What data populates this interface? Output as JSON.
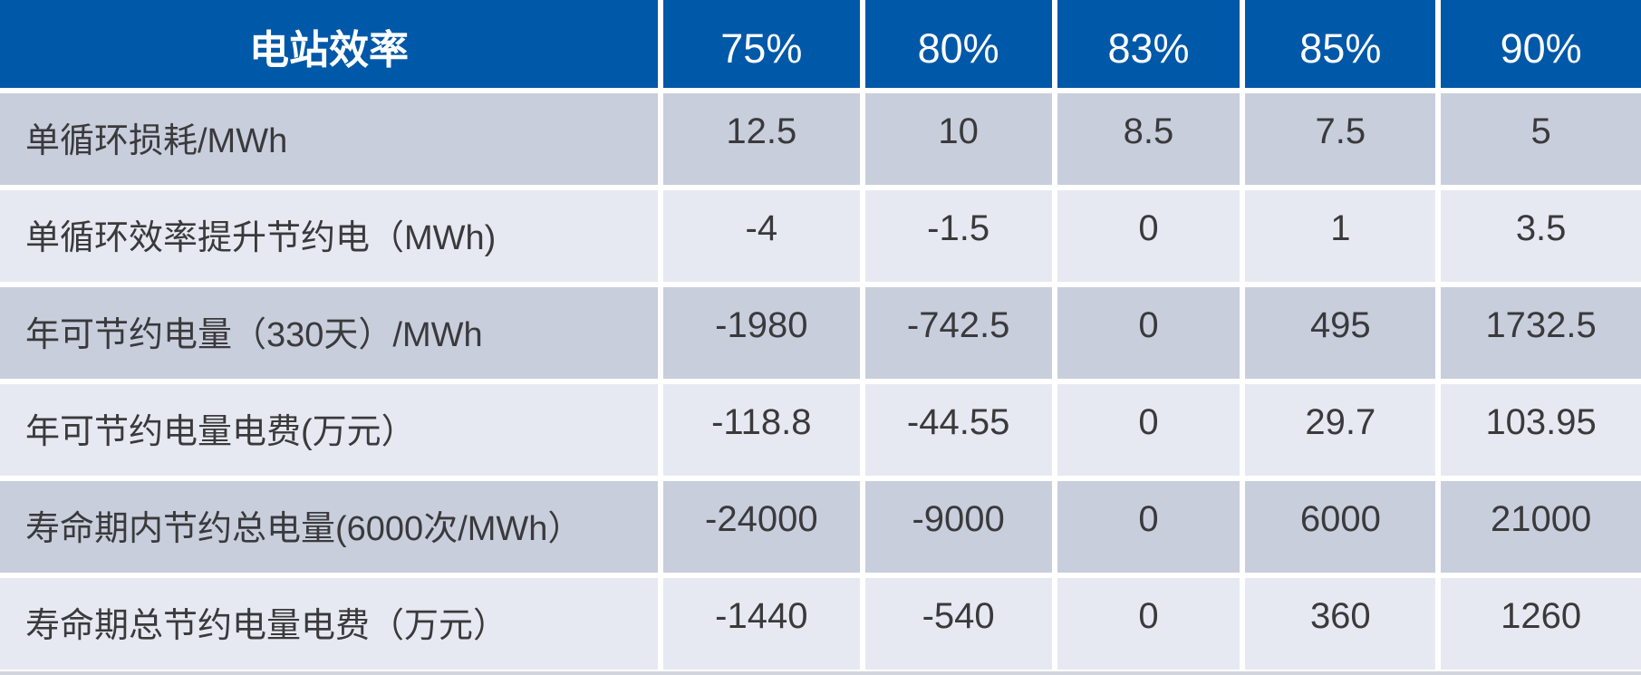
{
  "table": {
    "header": {
      "label": "电站效率",
      "columns": [
        "75%",
        "80%",
        "83%",
        "85%",
        "90%"
      ]
    },
    "rows": [
      {
        "label": "单循环损耗/MWh",
        "values": [
          "12.5",
          "10",
          "8.5",
          "7.5",
          "5"
        ]
      },
      {
        "label": "单循环效率提升节约电（MWh)",
        "values": [
          "-4",
          "-1.5",
          "0",
          "1",
          "3.5"
        ]
      },
      {
        "label": "年可节约电量（330天）/MWh",
        "values": [
          "-1980",
          "-742.5",
          "0",
          "495",
          "1732.5"
        ]
      },
      {
        "label": "年可节约电量电费(万元）",
        "values": [
          "-118.8",
          "-44.55",
          "0",
          "29.7",
          "103.95"
        ]
      },
      {
        "label": "寿命期内节约总电量(6000次/MWh）",
        "values": [
          "-24000",
          "-9000",
          "0",
          "6000",
          "21000"
        ]
      },
      {
        "label": "寿命期总节约电量电费（万元）",
        "values": [
          "-1440",
          "-540",
          "0",
          "360",
          "1260"
        ]
      }
    ],
    "colors": {
      "header_bg": "#0058A8",
      "header_text": "#FFFFFF",
      "row_odd_bg": "#C9CEDD",
      "row_even_bg": "#E7E9F2",
      "separator": "#FFFFFF",
      "body_text": "#3A3A3C",
      "bottom_strip": "#D2D5DD"
    }
  },
  "chart_data": {
    "type": "table",
    "title": "电站效率",
    "columns": [
      "75%",
      "80%",
      "83%",
      "85%",
      "90%"
    ],
    "rows": [
      {
        "label": "单循环损耗/MWh",
        "values": [
          12.5,
          10,
          8.5,
          7.5,
          5
        ]
      },
      {
        "label": "单循环效率提升节约电（MWh)",
        "values": [
          -4,
          -1.5,
          0,
          1,
          3.5
        ]
      },
      {
        "label": "年可节约电量（330天）/MWh",
        "values": [
          -1980,
          -742.5,
          0,
          495,
          1732.5
        ]
      },
      {
        "label": "年可节约电量电费(万元）",
        "values": [
          -118.8,
          -44.55,
          0,
          29.7,
          103.95
        ]
      },
      {
        "label": "寿命期内节约总电量(6000次/MWh）",
        "values": [
          -24000,
          -9000,
          0,
          6000,
          21000
        ]
      },
      {
        "label": "寿命期总节约电量电费（万元）",
        "values": [
          -1440,
          -540,
          0,
          360,
          1260
        ]
      }
    ],
    "layout": {
      "header_row": "blue",
      "body": "alternating light rows",
      "grid": "white separators"
    }
  }
}
